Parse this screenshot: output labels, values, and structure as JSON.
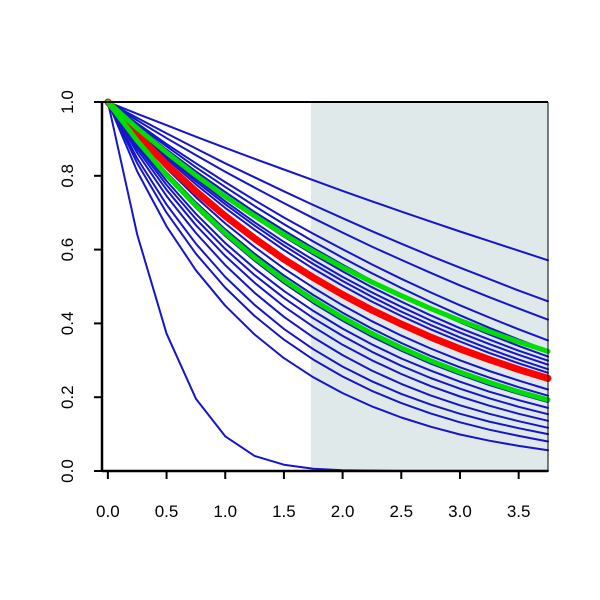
{
  "chart_data": {
    "type": "line",
    "title": "",
    "xlabel": "",
    "ylabel": "",
    "xlim": [
      -0.05,
      3.75
    ],
    "ylim": [
      0.0,
      1.0
    ],
    "x_ticks": [
      0.0,
      0.5,
      1.0,
      1.5,
      2.0,
      2.5,
      3.0,
      3.5
    ],
    "x_tick_labels": [
      "0.0",
      "0.5",
      "1.0",
      "1.5",
      "2.0",
      "2.5",
      "3.0",
      "3.5"
    ],
    "y_ticks": [
      0.0,
      0.2,
      0.4,
      0.6,
      0.8,
      1.0
    ],
    "y_tick_labels": [
      "0.0",
      "0.2",
      "0.4",
      "0.6",
      "0.8",
      "1.0"
    ],
    "grid": false,
    "legend": "none",
    "shaded_region": {
      "x_from": 1.73,
      "x_to": 3.75,
      "color": "#dfe9e9"
    },
    "colors": {
      "blue": "#1515cc",
      "red": "#ff0000",
      "green": "#00dd00",
      "axis": "#000000",
      "background": "#ffffff"
    },
    "x": [
      0,
      0.25,
      0.5,
      0.75,
      1.0,
      1.25,
      1.5,
      1.75,
      2.0,
      2.25,
      2.5,
      2.75,
      3.0,
      3.25,
      3.5,
      3.75
    ],
    "series": [
      {
        "color": "blue",
        "values": [
          1.0,
          0.641,
          0.372,
          0.196,
          0.094,
          0.041,
          0.017,
          0.006,
          0.002,
          0.001,
          0.0,
          0.0,
          0.0,
          0.0,
          0.0,
          0.0
        ]
      },
      {
        "color": "blue",
        "values": [
          1.0,
          0.968,
          0.937,
          0.906,
          0.876,
          0.846,
          0.817,
          0.788,
          0.759,
          0.731,
          0.703,
          0.676,
          0.649,
          0.623,
          0.597,
          0.571
        ]
      },
      {
        "color": "blue",
        "values": [
          1.0,
          0.957,
          0.915,
          0.874,
          0.834,
          0.796,
          0.758,
          0.721,
          0.685,
          0.65,
          0.616,
          0.583,
          0.551,
          0.52,
          0.489,
          0.46
        ]
      },
      {
        "color": "blue",
        "values": [
          1.0,
          0.95,
          0.902,
          0.856,
          0.811,
          0.768,
          0.726,
          0.685,
          0.646,
          0.608,
          0.572,
          0.537,
          0.503,
          0.471,
          0.44,
          0.41
        ]
      },
      {
        "color": "blue",
        "values": [
          1.0,
          0.942,
          0.886,
          0.834,
          0.783,
          0.734,
          0.687,
          0.643,
          0.601,
          0.56,
          0.521,
          0.484,
          0.449,
          0.416,
          0.384,
          0.354
        ]
      },
      {
        "color": "blue",
        "values": [
          1.0,
          0.938,
          0.88,
          0.823,
          0.77,
          0.718,
          0.669,
          0.622,
          0.578,
          0.536,
          0.496,
          0.458,
          0.422,
          0.388,
          0.356,
          0.326
        ]
      },
      {
        "color": "blue",
        "values": [
          1.0,
          0.934,
          0.871,
          0.812,
          0.756,
          0.702,
          0.652,
          0.604,
          0.559,
          0.516,
          0.476,
          0.438,
          0.403,
          0.37,
          0.339,
          0.31
        ]
      },
      {
        "color": "blue",
        "values": [
          1.0,
          0.93,
          0.864,
          0.801,
          0.742,
          0.687,
          0.635,
          0.587,
          0.541,
          0.498,
          0.459,
          0.422,
          0.387,
          0.356,
          0.326,
          0.299
        ]
      },
      {
        "color": "blue",
        "values": [
          1.0,
          0.927,
          0.857,
          0.792,
          0.731,
          0.674,
          0.621,
          0.572,
          0.526,
          0.484,
          0.445,
          0.408,
          0.375,
          0.344,
          0.315,
          0.288
        ]
      },
      {
        "color": "blue",
        "values": [
          1.0,
          0.924,
          0.852,
          0.785,
          0.723,
          0.665,
          0.611,
          0.561,
          0.515,
          0.472,
          0.432,
          0.396,
          0.362,
          0.331,
          0.302,
          0.276
        ]
      },
      {
        "color": "blue",
        "values": [
          1.0,
          0.92,
          0.846,
          0.777,
          0.713,
          0.654,
          0.599,
          0.548,
          0.502,
          0.459,
          0.42,
          0.384,
          0.351,
          0.32,
          0.292,
          0.266
        ]
      },
      {
        "color": "blue",
        "values": [
          1.0,
          0.913,
          0.833,
          0.76,
          0.693,
          0.632,
          0.576,
          0.524,
          0.477,
          0.435,
          0.396,
          0.36,
          0.328,
          0.299,
          0.272,
          0.247
        ]
      },
      {
        "color": "blue",
        "values": [
          1.0,
          0.905,
          0.82,
          0.742,
          0.671,
          0.607,
          0.549,
          0.497,
          0.449,
          0.406,
          0.367,
          0.332,
          0.3,
          0.271,
          0.245,
          0.221
        ]
      },
      {
        "color": "blue",
        "values": [
          1.0,
          0.899,
          0.809,
          0.728,
          0.655,
          0.589,
          0.53,
          0.477,
          0.429,
          0.386,
          0.347,
          0.312,
          0.281,
          0.253,
          0.227,
          0.204
        ]
      },
      {
        "color": "blue",
        "values": [
          1.0,
          0.893,
          0.798,
          0.713,
          0.637,
          0.57,
          0.509,
          0.455,
          0.407,
          0.364,
          0.326,
          0.291,
          0.261,
          0.233,
          0.209,
          0.187
        ]
      },
      {
        "color": "blue",
        "values": [
          1.0,
          0.886,
          0.786,
          0.697,
          0.618,
          0.549,
          0.488,
          0.434,
          0.386,
          0.343,
          0.305,
          0.272,
          0.242,
          0.215,
          0.192,
          0.171
        ]
      },
      {
        "color": "blue",
        "values": [
          1.0,
          0.88,
          0.775,
          0.683,
          0.602,
          0.531,
          0.469,
          0.414,
          0.366,
          0.323,
          0.285,
          0.252,
          0.223,
          0.197,
          0.174,
          0.154
        ]
      },
      {
        "color": "blue",
        "values": [
          1.0,
          0.872,
          0.762,
          0.666,
          0.583,
          0.51,
          0.446,
          0.391,
          0.342,
          0.3,
          0.263,
          0.23,
          0.202,
          0.177,
          0.155,
          0.136
        ]
      },
      {
        "color": "blue",
        "values": [
          1.0,
          0.862,
          0.745,
          0.645,
          0.558,
          0.483,
          0.418,
          0.362,
          0.314,
          0.272,
          0.236,
          0.205,
          0.178,
          0.155,
          0.135,
          0.117
        ]
      },
      {
        "color": "blue",
        "values": [
          1.0,
          0.847,
          0.722,
          0.616,
          0.526,
          0.45,
          0.385,
          0.33,
          0.283,
          0.243,
          0.209,
          0.18,
          0.155,
          0.134,
          0.116,
          0.1
        ]
      },
      {
        "color": "blue",
        "values": [
          1.0,
          0.834,
          0.7,
          0.589,
          0.497,
          0.42,
          0.356,
          0.302,
          0.256,
          0.217,
          0.184,
          0.156,
          0.132,
          0.112,
          0.095,
          0.08
        ]
      },
      {
        "color": "blue",
        "values": [
          1.0,
          0.812,
          0.663,
          0.544,
          0.448,
          0.37,
          0.306,
          0.254,
          0.211,
          0.175,
          0.145,
          0.12,
          0.099,
          0.082,
          0.068,
          0.056
        ]
      },
      {
        "color": "red",
        "values": [
          1.0,
          0.912,
          0.831,
          0.758,
          0.691,
          0.63,
          0.574,
          0.524,
          0.478,
          0.436,
          0.398,
          0.363,
          0.331,
          0.302,
          0.275,
          0.251
        ]
      },
      {
        "color": "green",
        "values": [
          1.0,
          0.929,
          0.863,
          0.801,
          0.744,
          0.691,
          0.641,
          0.595,
          0.552,
          0.512,
          0.475,
          0.44,
          0.408,
          0.378,
          0.35,
          0.324
        ]
      },
      {
        "color": "green",
        "values": [
          1.0,
          0.895,
          0.802,
          0.719,
          0.645,
          0.578,
          0.518,
          0.464,
          0.416,
          0.373,
          0.334,
          0.299,
          0.268,
          0.24,
          0.215,
          0.193
        ]
      }
    ]
  }
}
